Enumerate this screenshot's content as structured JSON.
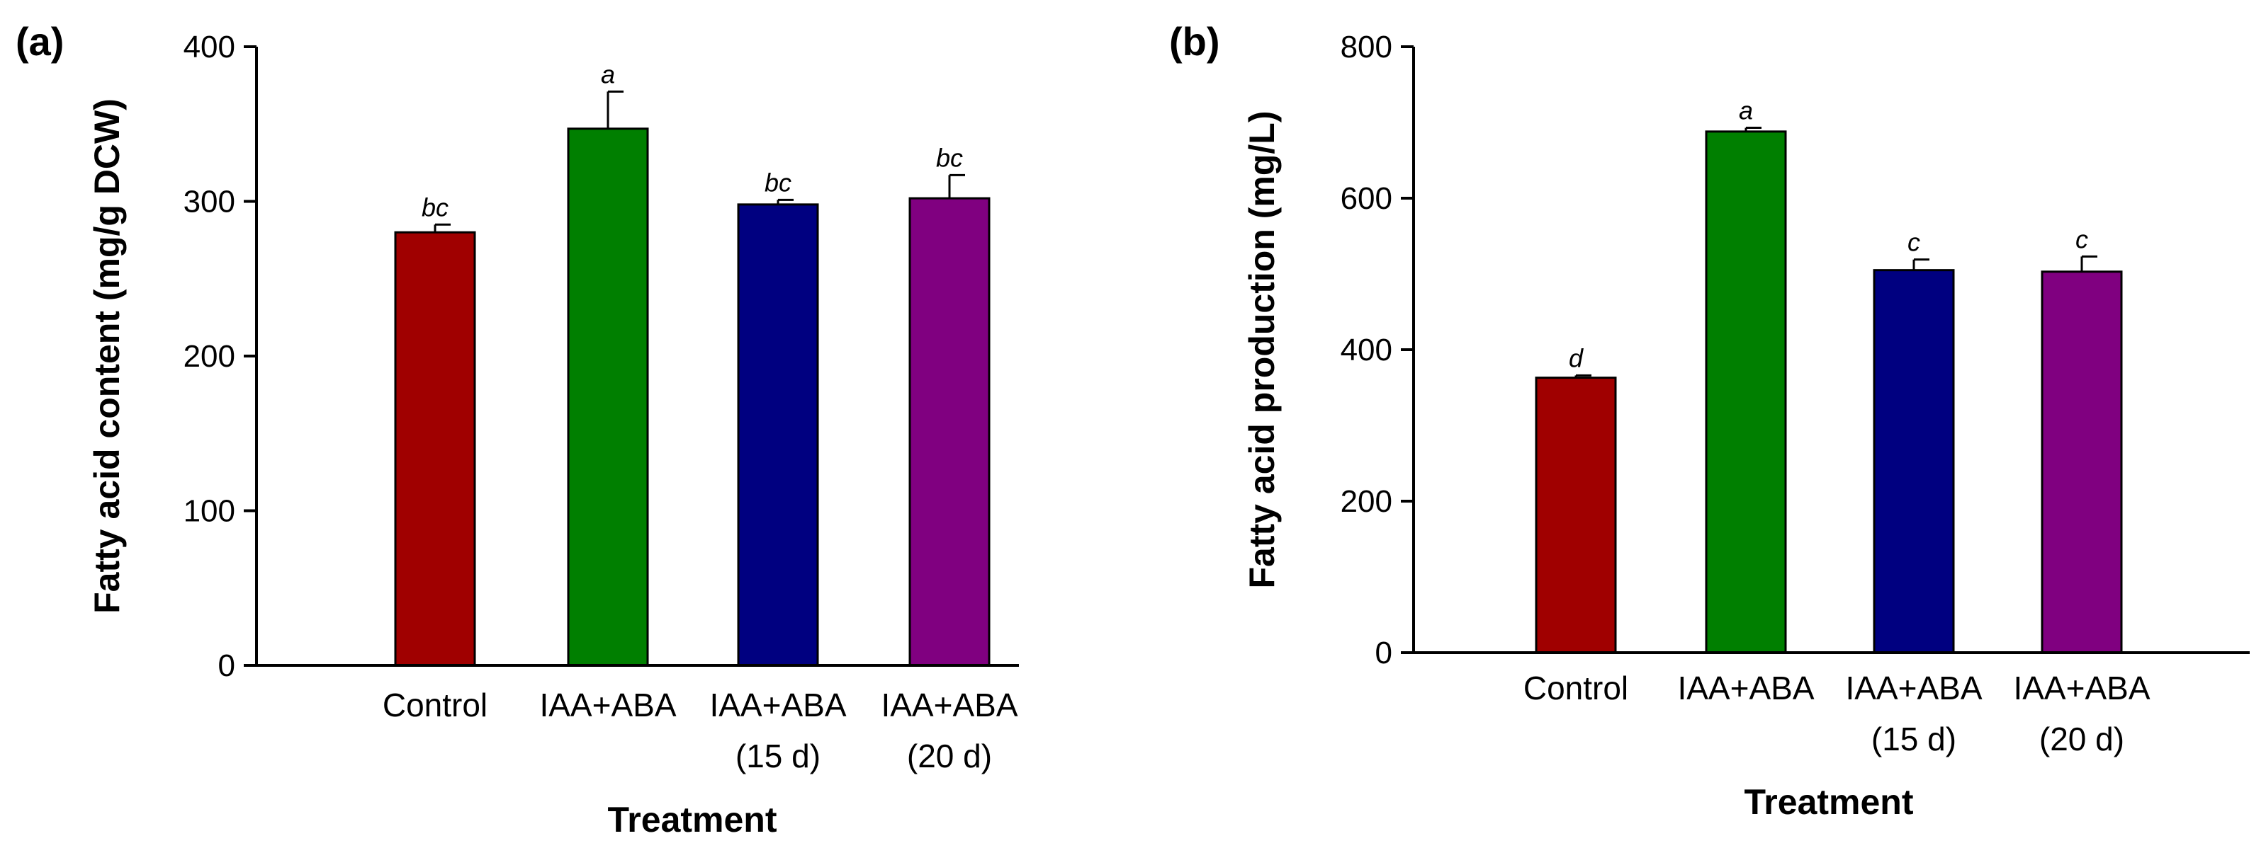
{
  "chart_data": [
    {
      "type": "bar",
      "panel_label": "(a)",
      "xlabel": "Treatment",
      "ylabel": "Fatty acid content (mg/g DCW)",
      "ylim": [
        0,
        400
      ],
      "yticks": [
        0,
        100,
        200,
        300,
        400
      ],
      "categories": [
        [
          "Control"
        ],
        [
          "IAA+ABA"
        ],
        [
          "IAA+ABA",
          "(15 d)"
        ],
        [
          "IAA+ABA",
          "(20 d)"
        ]
      ],
      "values": [
        280,
        347,
        298,
        302
      ],
      "errors": [
        5,
        24,
        3,
        15
      ],
      "significance": [
        "bc",
        "a",
        "bc",
        "bc"
      ],
      "colors": [
        "#a00000",
        "#007f00",
        "#000080",
        "#800080"
      ]
    },
    {
      "type": "bar",
      "panel_label": "(b)",
      "xlabel": "Treatment",
      "ylabel": "Fatty acid production (mg/L)",
      "ylim": [
        0,
        800
      ],
      "yticks": [
        0,
        200,
        400,
        600,
        800
      ],
      "categories": [
        [
          "Control"
        ],
        [
          "IAA+ABA"
        ],
        [
          "IAA+ABA",
          "(15 d)"
        ],
        [
          "IAA+ABA",
          "(20 d)"
        ]
      ],
      "values": [
        363,
        688,
        505,
        503
      ],
      "errors": [
        3,
        5,
        14,
        20
      ],
      "significance": [
        "d",
        "a",
        "c",
        "c"
      ],
      "colors": [
        "#a00000",
        "#007f00",
        "#000080",
        "#800080"
      ]
    }
  ]
}
